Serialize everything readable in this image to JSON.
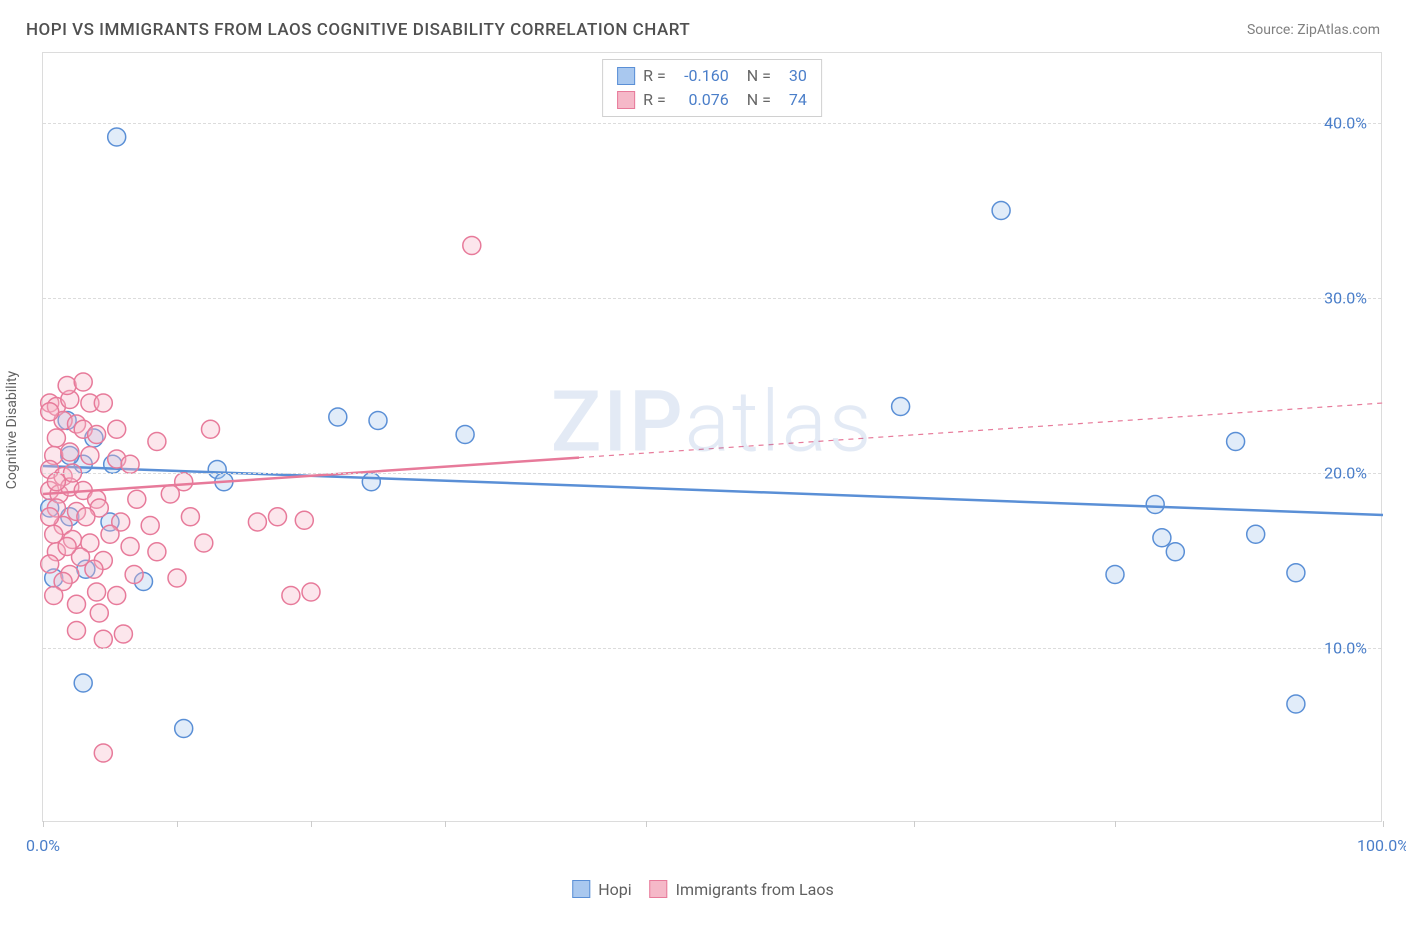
{
  "title": "HOPI VS IMMIGRANTS FROM LAOS COGNITIVE DISABILITY CORRELATION CHART",
  "source": "Source: ZipAtlas.com",
  "y_axis_label": "Cognitive Disability",
  "watermark": {
    "part1": "ZIP",
    "part2": "atlas"
  },
  "chart": {
    "type": "scatter",
    "background_color": "#ffffff",
    "border_color": "#dcdcdc",
    "grid_color": "#dcdcdc",
    "xlim": [
      0,
      100
    ],
    "ylim": [
      0,
      44
    ],
    "x_tick_positions": [
      0,
      10,
      20,
      30,
      45,
      65,
      80,
      100
    ],
    "x_tick_labels": {
      "0": "0.0%",
      "100": "100.0%"
    },
    "y_gridlines": [
      10,
      20,
      30,
      40
    ],
    "y_tick_labels": [
      "10.0%",
      "20.0%",
      "30.0%",
      "40.0%"
    ],
    "marker_radius": 9,
    "marker_stroke_width": 1.5,
    "marker_fill_opacity": 0.35,
    "line_width": 2.5,
    "line_width_dashed": 1.2
  },
  "legend_top": [
    {
      "r_label": "R =",
      "r_value": "-0.160",
      "n_label": "N =",
      "n_value": "30",
      "swatch_fill": "#a9c8ef",
      "swatch_border": "#5a8fd6"
    },
    {
      "r_label": "R =",
      "r_value": "0.076",
      "n_label": "N =",
      "n_value": "74",
      "swatch_fill": "#f5b8c8",
      "swatch_border": "#e77a9a"
    }
  ],
  "legend_bottom": [
    {
      "label": "Hopi",
      "swatch_fill": "#a9c8ef",
      "swatch_border": "#5a8fd6"
    },
    {
      "label": "Immigrants from Laos",
      "swatch_fill": "#f5b8c8",
      "swatch_border": "#e77a9a"
    }
  ],
  "series": [
    {
      "name": "Hopi",
      "color_fill": "#a9c8ef",
      "color_stroke": "#5a8fd6",
      "trend": {
        "x1": 0,
        "y1": 20.4,
        "x2": 100,
        "y2": 17.6,
        "solid_until_x": 100
      },
      "points": [
        [
          5.5,
          39.2
        ],
        [
          1.8,
          23.0
        ],
        [
          3.8,
          22.0
        ],
        [
          5.2,
          20.5
        ],
        [
          13.0,
          20.2
        ],
        [
          2.0,
          17.5
        ],
        [
          5.0,
          17.2
        ],
        [
          3.2,
          14.5
        ],
        [
          0.8,
          14.0
        ],
        [
          7.5,
          13.8
        ],
        [
          3.0,
          8.0
        ],
        [
          10.5,
          5.4
        ],
        [
          22.0,
          23.2
        ],
        [
          25.0,
          23.0
        ],
        [
          24.5,
          19.5
        ],
        [
          13.5,
          19.5
        ],
        [
          31.5,
          22.2
        ],
        [
          64.0,
          23.8
        ],
        [
          71.5,
          35.0
        ],
        [
          80.0,
          14.2
        ],
        [
          83.0,
          18.2
        ],
        [
          83.5,
          16.3
        ],
        [
          84.5,
          15.5
        ],
        [
          89.0,
          21.8
        ],
        [
          90.5,
          16.5
        ],
        [
          93.5,
          14.3
        ],
        [
          93.5,
          6.8
        ],
        [
          3.0,
          20.5
        ],
        [
          0.5,
          18.0
        ],
        [
          2.0,
          21.0
        ]
      ]
    },
    {
      "name": "Immigrants from Laos",
      "color_fill": "#f5b8c8",
      "color_stroke": "#e77a9a",
      "trend": {
        "x1": 0,
        "y1": 18.8,
        "x2": 100,
        "y2": 24.0,
        "solid_until_x": 40
      },
      "points": [
        [
          32.0,
          33.0
        ],
        [
          0.5,
          24.0
        ],
        [
          1.0,
          23.8
        ],
        [
          2.0,
          24.2
        ],
        [
          1.5,
          23.0
        ],
        [
          3.5,
          24.0
        ],
        [
          4.5,
          24.0
        ],
        [
          2.5,
          22.8
        ],
        [
          1.0,
          22.0
        ],
        [
          3.0,
          22.5
        ],
        [
          4.0,
          22.2
        ],
        [
          5.5,
          22.5
        ],
        [
          0.8,
          21.0
        ],
        [
          2.0,
          21.2
        ],
        [
          3.5,
          21.0
        ],
        [
          0.5,
          20.2
        ],
        [
          1.5,
          19.8
        ],
        [
          5.5,
          20.8
        ],
        [
          6.5,
          20.5
        ],
        [
          8.5,
          21.8
        ],
        [
          12.5,
          22.5
        ],
        [
          0.5,
          19.0
        ],
        [
          1.2,
          18.8
        ],
        [
          2.0,
          19.2
        ],
        [
          3.0,
          19.0
        ],
        [
          4.0,
          18.5
        ],
        [
          1.0,
          18.0
        ],
        [
          2.5,
          17.8
        ],
        [
          4.2,
          18.0
        ],
        [
          5.8,
          17.2
        ],
        [
          1.5,
          17.0
        ],
        [
          0.8,
          16.5
        ],
        [
          2.2,
          16.2
        ],
        [
          3.5,
          16.0
        ],
        [
          5.0,
          16.5
        ],
        [
          1.0,
          15.5
        ],
        [
          2.8,
          15.2
        ],
        [
          4.5,
          15.0
        ],
        [
          6.5,
          15.8
        ],
        [
          0.5,
          14.8
        ],
        [
          2.0,
          14.2
        ],
        [
          3.8,
          14.5
        ],
        [
          1.5,
          13.8
        ],
        [
          4.0,
          13.2
        ],
        [
          5.5,
          13.0
        ],
        [
          6.8,
          14.2
        ],
        [
          8.0,
          17.0
        ],
        [
          9.5,
          18.8
        ],
        [
          10.5,
          19.5
        ],
        [
          11.0,
          17.5
        ],
        [
          12.0,
          16.0
        ],
        [
          16.0,
          17.2
        ],
        [
          17.5,
          17.5
        ],
        [
          19.5,
          17.3
        ],
        [
          18.5,
          13.0
        ],
        [
          20.0,
          13.2
        ],
        [
          10.0,
          14.0
        ],
        [
          4.2,
          12.0
        ],
        [
          6.0,
          10.8
        ],
        [
          4.5,
          10.5
        ],
        [
          2.5,
          12.5
        ],
        [
          4.5,
          4.0
        ],
        [
          1.8,
          25.0
        ],
        [
          0.5,
          23.5
        ],
        [
          3.0,
          25.2
        ],
        [
          1.0,
          19.5
        ],
        [
          2.2,
          20.0
        ],
        [
          0.5,
          17.5
        ],
        [
          1.8,
          15.8
        ],
        [
          3.2,
          17.5
        ],
        [
          0.8,
          13.0
        ],
        [
          2.5,
          11.0
        ],
        [
          7.0,
          18.5
        ],
        [
          8.5,
          15.5
        ]
      ]
    }
  ]
}
